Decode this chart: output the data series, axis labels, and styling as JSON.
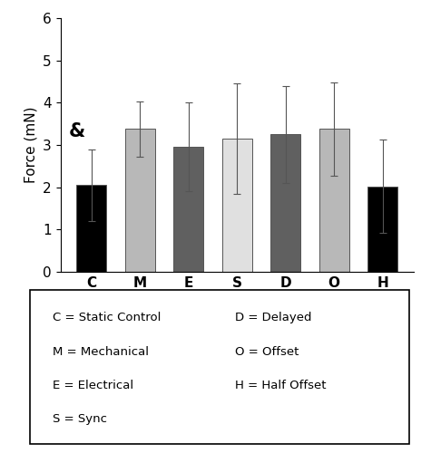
{
  "categories": [
    "C",
    "M",
    "E",
    "S",
    "D",
    "O",
    "H"
  ],
  "values": [
    2.05,
    3.38,
    2.95,
    3.15,
    3.25,
    3.38,
    2.02
  ],
  "errors": [
    0.85,
    0.65,
    1.05,
    1.3,
    1.15,
    1.1,
    1.1
  ],
  "bar_colors": [
    "#000000",
    "#b8b8b8",
    "#606060",
    "#e0e0e0",
    "#606060",
    "#b8b8b8",
    "#000000"
  ],
  "ylabel": "Force (mN)",
  "ylim": [
    0,
    6
  ],
  "yticks": [
    0,
    1,
    2,
    3,
    4,
    5,
    6
  ],
  "ampersand_label": "&",
  "legend_lines_left": [
    "C = Static Control",
    "M = Mechanical",
    "E = Electrical",
    "S = Sync"
  ],
  "legend_lines_right": [
    "D = Delayed",
    "O = Offset",
    "H = Half Offset"
  ],
  "tick_label_fontsize": 11,
  "ylabel_fontsize": 11,
  "legend_fontsize": 9.5
}
